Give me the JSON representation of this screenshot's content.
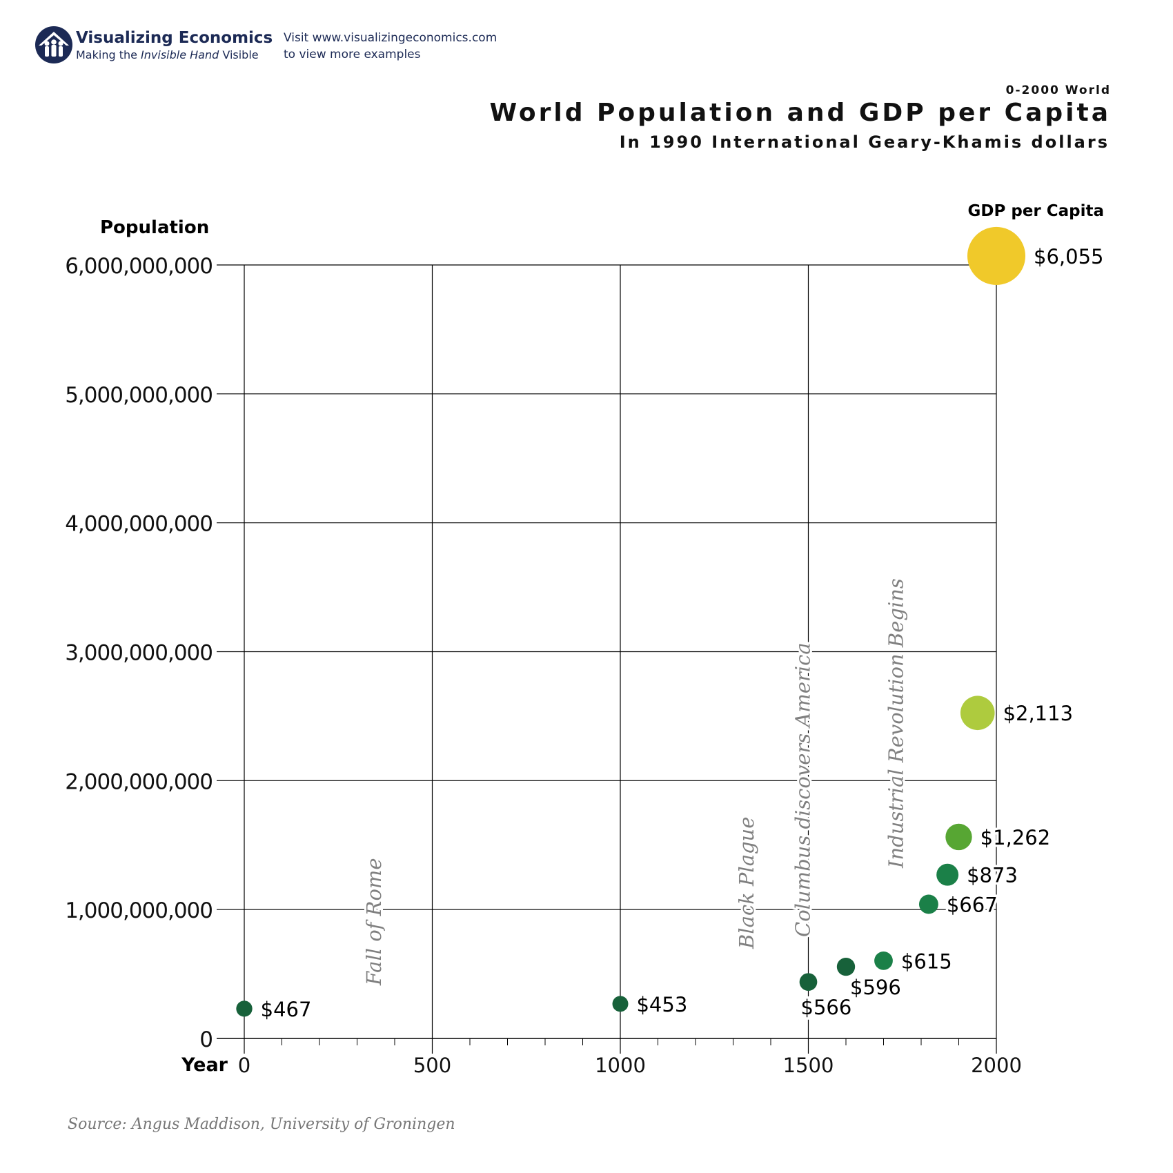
{
  "header": {
    "logo_title": "Visualizing Economics",
    "logo_tagline_pre": "Making the ",
    "logo_tagline_em": "Invisible Hand",
    "logo_tagline_post": " Visible",
    "visit_line1": "Visit www.visualizingeconomics.com",
    "visit_line2": "to view more examples",
    "brand_color": "#1c2a55"
  },
  "chart_data": {
    "type": "scatter",
    "supertitle": "0-2000 World",
    "title": "World Population and GDP per Capita",
    "subtitle": "In 1990 International Geary-Khamis dollars",
    "xlabel": "Year",
    "ylabel": "Population",
    "size_label": "GDP per Capita",
    "xlim": [
      0,
      2000
    ],
    "ylim": [
      0,
      6000000000
    ],
    "x_ticks": [
      "0",
      "500",
      "1000",
      "1500",
      "2000"
    ],
    "x_tick_values": [
      0,
      500,
      1000,
      1500,
      2000
    ],
    "y_ticks": [
      "0",
      "1,000,000,000",
      "2,000,000,000",
      "3,000,000,000",
      "4,000,000,000",
      "5,000,000,000",
      "6,000,000,000"
    ],
    "y_tick_values": [
      0,
      1000000000,
      2000000000,
      3000000000,
      4000000000,
      5000000000,
      6000000000
    ],
    "grid": true,
    "points": [
      {
        "year": 0,
        "population": 230800000,
        "gdp_per_capita": 467,
        "label": "$467",
        "color": "#17613a"
      },
      {
        "year": 1000,
        "population": 268000000,
        "gdp_per_capita": 453,
        "label": "$453",
        "color": "#17613a"
      },
      {
        "year": 1500,
        "population": 438000000,
        "gdp_per_capita": 566,
        "label": "$566",
        "color": "#17613a"
      },
      {
        "year": 1600,
        "population": 556000000,
        "gdp_per_capita": 596,
        "label": "$596",
        "color": "#17613a"
      },
      {
        "year": 1700,
        "population": 603000000,
        "gdp_per_capita": 615,
        "label": "$615",
        "color": "#1b8048"
      },
      {
        "year": 1820,
        "population": 1041000000,
        "gdp_per_capita": 667,
        "label": "$667",
        "color": "#1b8048"
      },
      {
        "year": 1870,
        "population": 1270000000,
        "gdp_per_capita": 873,
        "label": "$873",
        "color": "#1b8048"
      },
      {
        "year": 1900,
        "population": 1563000000,
        "gdp_per_capita": 1262,
        "label": "$1,262",
        "color": "#57a633"
      },
      {
        "year": 1950,
        "population": 2525000000,
        "gdp_per_capita": 2113,
        "label": "$2,113",
        "color": "#aecb3e"
      },
      {
        "year": 2000,
        "population": 6070000000,
        "gdp_per_capita": 6055,
        "label": "$6,055",
        "color": "#f0c92a"
      }
    ],
    "annotations": [
      {
        "text": "Fall of Rome",
        "year": 345
      },
      {
        "text": "Black Plague",
        "year": 1336
      },
      {
        "text": "Columbus discovers America",
        "year": 1485
      },
      {
        "text": "Industrial Revolution Begins",
        "year": 1733
      }
    ],
    "source": "Source: Angus Maddison, University of Groningen"
  }
}
